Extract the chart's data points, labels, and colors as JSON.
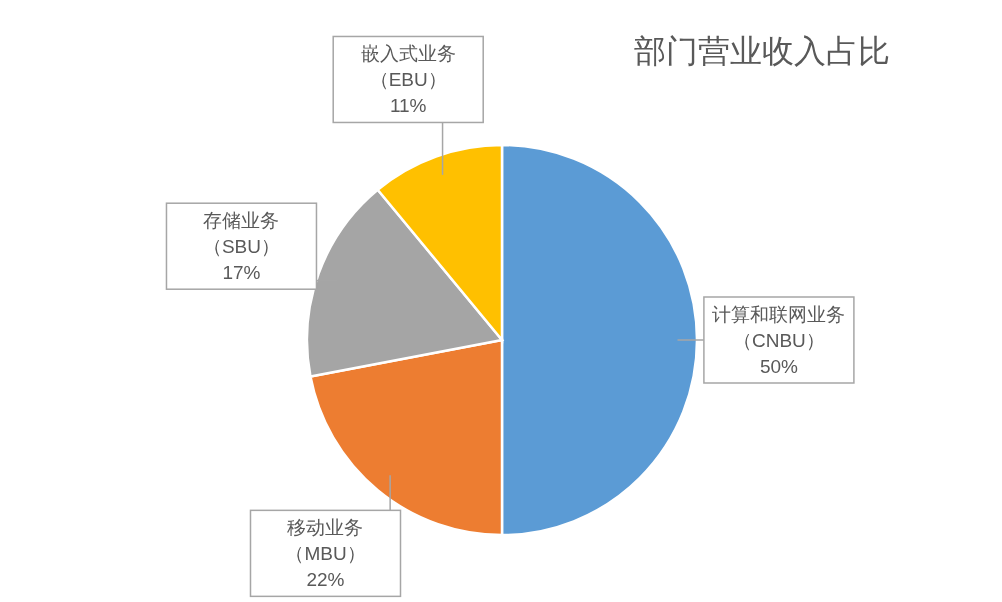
{
  "chart_data": {
    "type": "pie",
    "title": "部门营业收入占比",
    "categories": [
      "计算和联网业务（CNBU）",
      "移动业务（MBU）",
      "存储业务（SBU）",
      "嵌入式业务（EBU）"
    ],
    "values": [
      50,
      22,
      17,
      11
    ],
    "value_labels": [
      "50%",
      "22%",
      "17%",
      "11%"
    ],
    "colors": [
      "#5b9bd5",
      "#ed7d31",
      "#a5a5a5",
      "#ffc000"
    ]
  }
}
